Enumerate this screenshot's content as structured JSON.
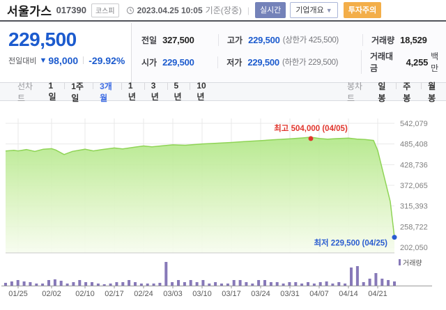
{
  "header": {
    "stock_name": "서울가스",
    "stock_code": "017390",
    "market_badge": "코스피",
    "datetime": "2023.04.25 10:05",
    "datetime_suffix": "기준(장중)",
    "badge_realtime": "실시간",
    "badge_overview": "기업개요",
    "badge_caution": "투자주의"
  },
  "price_panel": {
    "current_price": "229,500",
    "change_label": "전일대비",
    "change_value": "98,000",
    "change_percent": "-29.92%"
  },
  "info_table": {
    "rows": [
      {
        "c1_label": "전일",
        "c1_value": "327,500",
        "c2_label": "고가",
        "c2_value": "229,500",
        "c2_extra": "(상한가 425,500)",
        "c3_label": "거래량",
        "c3_value": "18,529",
        "c3_unit": ""
      },
      {
        "c1_label": "시가",
        "c1_value": "229,500",
        "c2_label": "저가",
        "c2_value": "229,500",
        "c2_extra": "(하한가 229,500)",
        "c3_label": "거래대금",
        "c3_value": "4,255",
        "c3_unit": "백만"
      }
    ]
  },
  "chart_tabs": {
    "line_group_label": "선차트",
    "line_tabs": [
      "1일",
      "1주일",
      "3개월",
      "1년",
      "3년",
      "5년",
      "10년"
    ],
    "active_line_tab": "3개월",
    "candle_group_label": "봉차트",
    "candle_tabs": [
      "일봉",
      "주봉",
      "월봉"
    ]
  },
  "chart_data": {
    "type": "area",
    "title": "서울가스 3개월 주가 추이",
    "xlabel": "",
    "ylabel": "",
    "ylim": [
      202050,
      542079
    ],
    "grid": true,
    "y_ticks": [
      "542,079",
      "485,408",
      "428,736",
      "372,065",
      "315,393",
      "258,722",
      "202,050"
    ],
    "y_tick_values": [
      542079,
      485408,
      428736,
      372065,
      315393,
      258722,
      202050
    ],
    "x_ticks": [
      "01/25",
      "02/02",
      "02/10",
      "02/17",
      "02/24",
      "03/03",
      "03/10",
      "03/17",
      "03/24",
      "03/31",
      "04/07",
      "04/14",
      "04/21"
    ],
    "x_tick_days": [
      0,
      8,
      16,
      23,
      30,
      37,
      44,
      51,
      58,
      65,
      72,
      79,
      86
    ],
    "day_range": [
      -3,
      90
    ],
    "price_series": {
      "name": "주가",
      "points": [
        [
          -3,
          466000
        ],
        [
          -1,
          468000
        ],
        [
          0,
          466500
        ],
        [
          2,
          470000
        ],
        [
          4,
          465000
        ],
        [
          6,
          471000
        ],
        [
          8,
          472500
        ],
        [
          9,
          469000
        ],
        [
          11,
          456500
        ],
        [
          13,
          465000
        ],
        [
          16,
          471000
        ],
        [
          18,
          466500
        ],
        [
          20,
          470000
        ],
        [
          23,
          474500
        ],
        [
          25,
          472000
        ],
        [
          28,
          477000
        ],
        [
          30,
          480000
        ],
        [
          32,
          477500
        ],
        [
          35,
          481000
        ],
        [
          37,
          483000
        ],
        [
          40,
          482000
        ],
        [
          44,
          485500
        ],
        [
          47,
          487000
        ],
        [
          51,
          489500
        ],
        [
          54,
          492000
        ],
        [
          58,
          494500
        ],
        [
          61,
          497000
        ],
        [
          65,
          499500
        ],
        [
          68,
          502000
        ],
        [
          70,
          504000
        ],
        [
          72,
          500500
        ],
        [
          74,
          498500
        ],
        [
          76,
          500000
        ],
        [
          79,
          501500
        ],
        [
          81,
          499000
        ],
        [
          83,
          497500
        ],
        [
          85,
          495000
        ],
        [
          86,
          467500
        ],
        [
          89,
          327500
        ],
        [
          90,
          229500
        ]
      ]
    },
    "annotations": {
      "high": {
        "label": "최고",
        "value": "504,000",
        "date": "(04/05)",
        "day": 70,
        "price": 504000,
        "color": "#e0352c"
      },
      "low": {
        "label": "최저",
        "value": "229,500",
        "date": "(04/25)",
        "day": 90,
        "price": 229500,
        "color": "#2a5cd0"
      }
    },
    "volume": {
      "legend": "거래량",
      "unit": "relative-px",
      "values": [
        4,
        6,
        8,
        6,
        5,
        3,
        3,
        8,
        9,
        7,
        3,
        5,
        8,
        5,
        5,
        3,
        2,
        3,
        5,
        5,
        8,
        5,
        3,
        3,
        3,
        4,
        34,
        5,
        8,
        5,
        8,
        5,
        8,
        3,
        5,
        3,
        3,
        8,
        8,
        5,
        3,
        8,
        8,
        5,
        5,
        3,
        5,
        5,
        3,
        5,
        3,
        5,
        6,
        3,
        5,
        3,
        26,
        28,
        5,
        10,
        18,
        10,
        8,
        6
      ]
    },
    "colors": {
      "line": "#8fd456",
      "fill_top": "#aee683",
      "fill_mid": "#d6f2b9",
      "fill_bottom": "#f7fcef",
      "volume": "#8779b8",
      "grid": "#e9e9e9",
      "axis": "#c8c8c8",
      "baseline": "#9a9a9a"
    }
  }
}
